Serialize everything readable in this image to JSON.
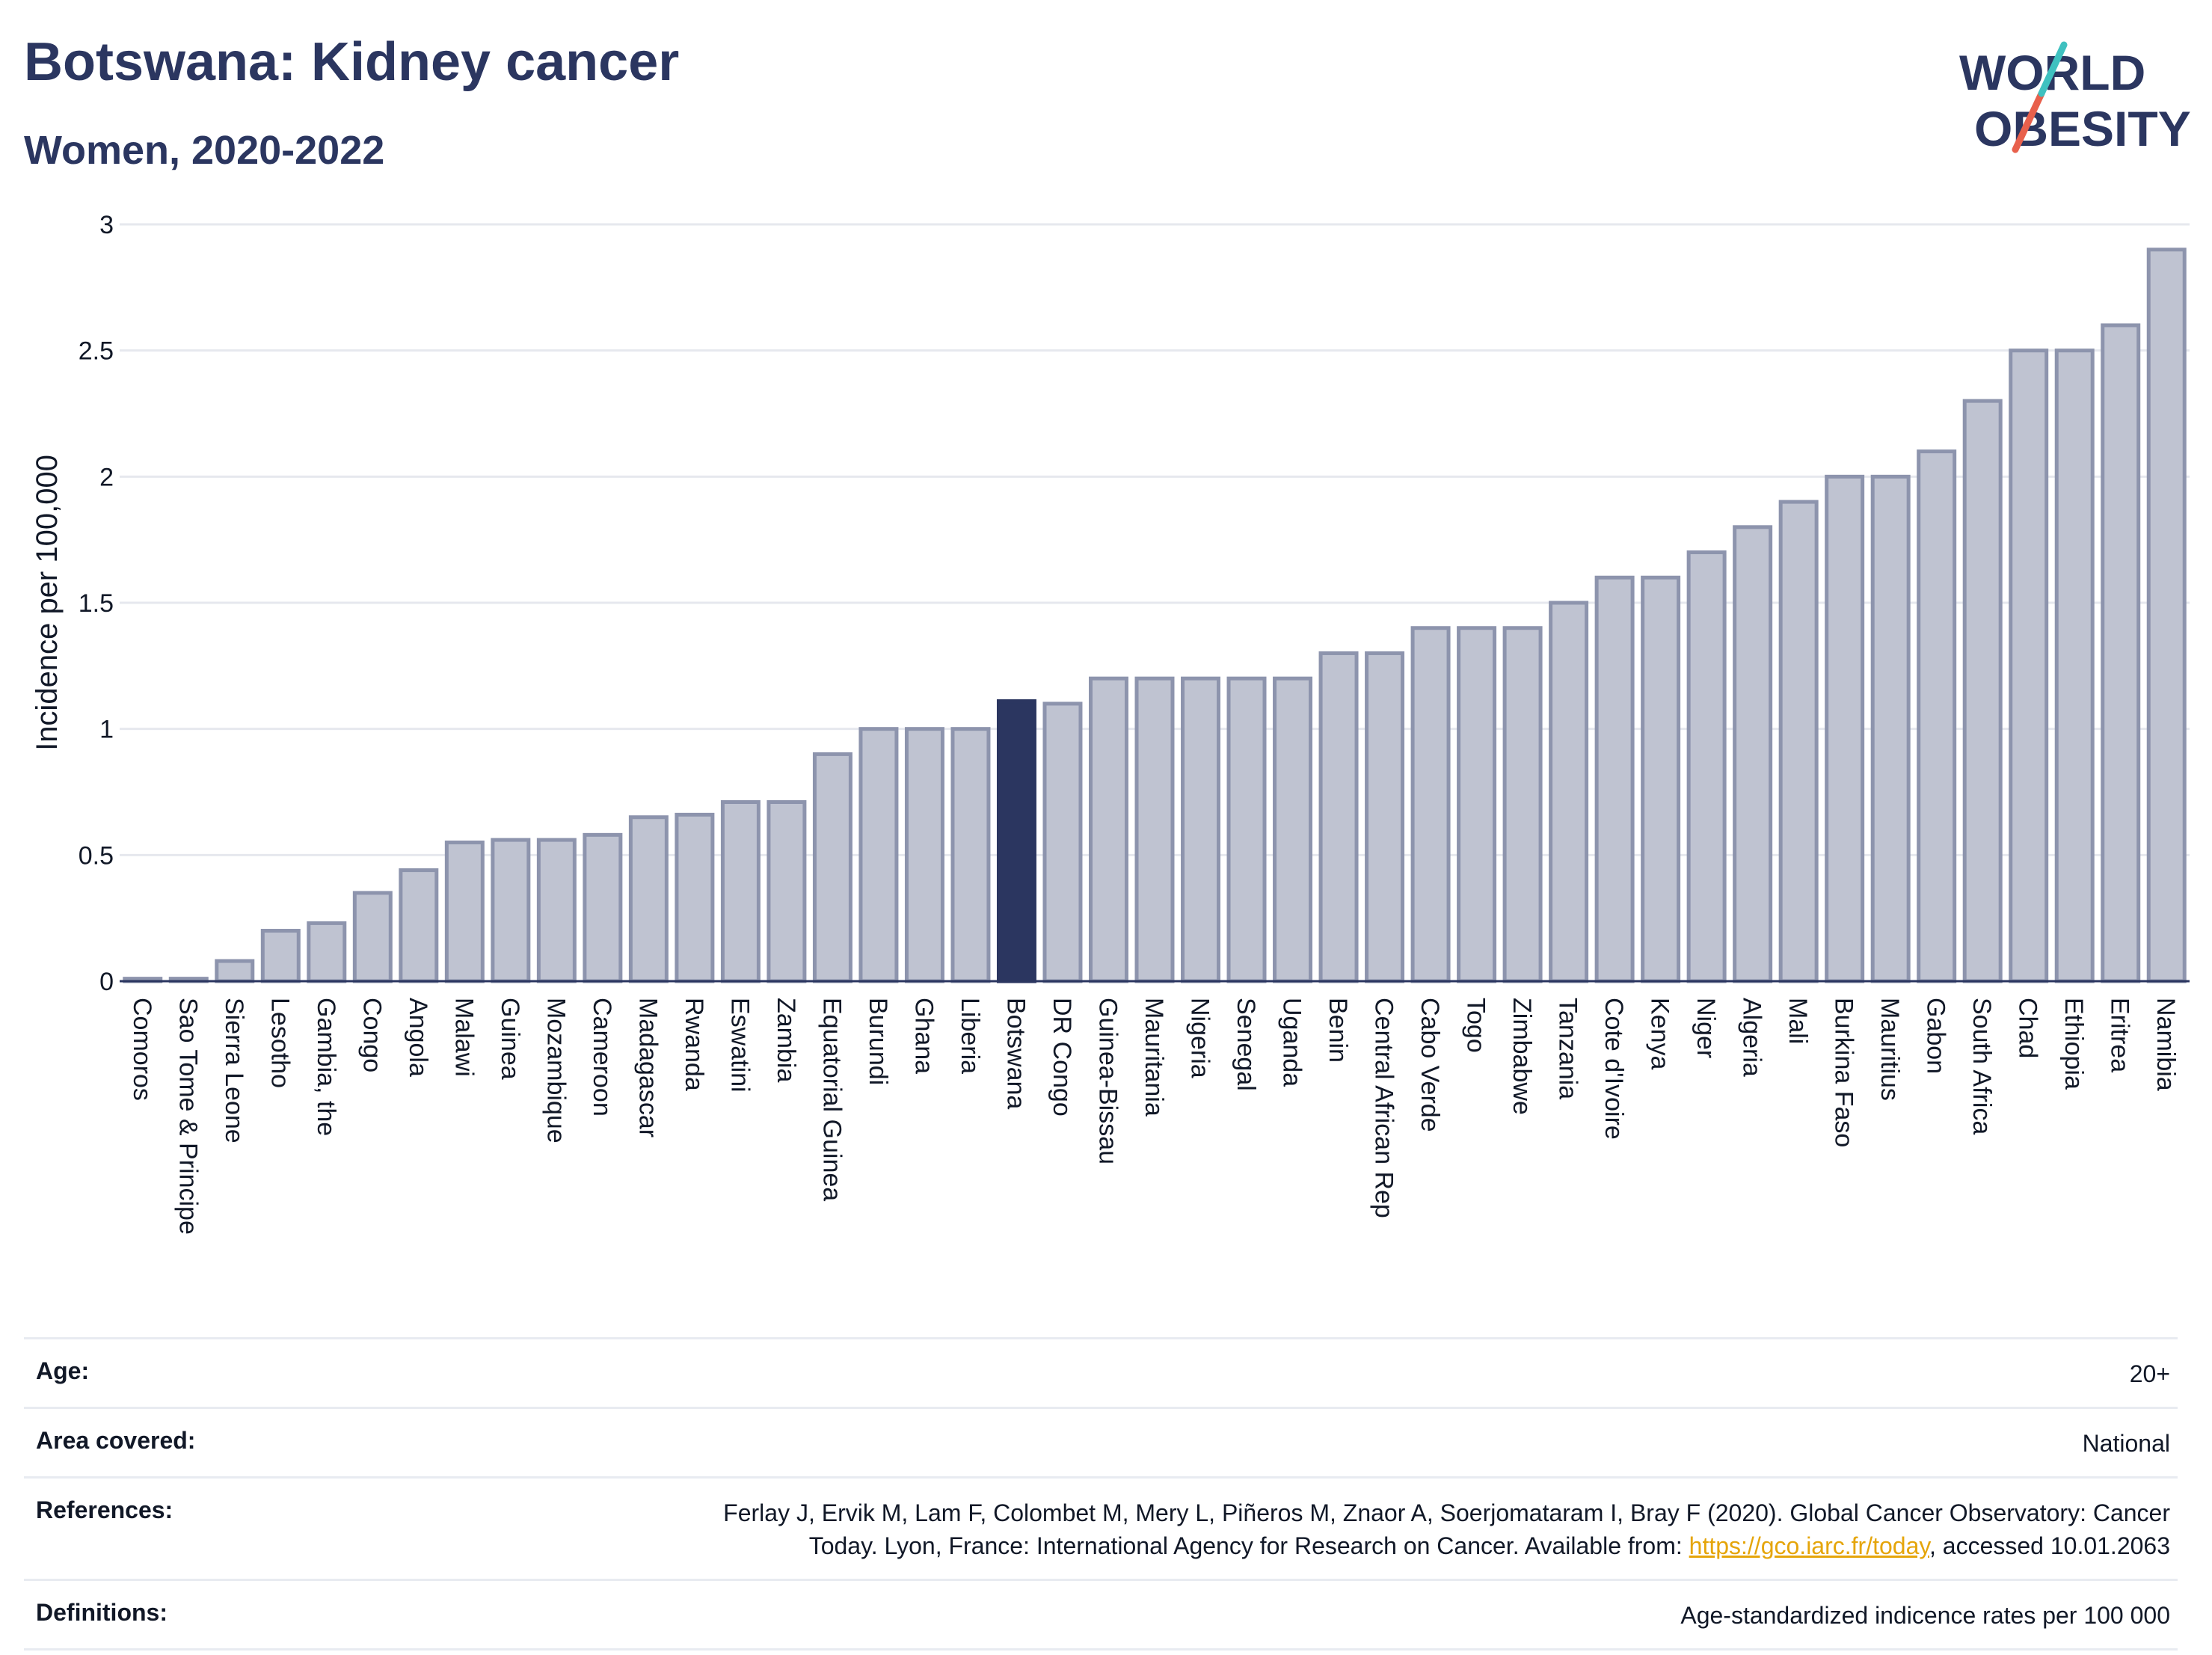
{
  "header": {
    "title": "Botswana: Kidney cancer",
    "subtitle": "Women, 2020-2022"
  },
  "logo": {
    "line1": "WORLD",
    "line2": "OBESITY"
  },
  "colors": {
    "highlight": "#2b3660",
    "bar": "#bfc3d1",
    "bar_stroke": "#8d94ad",
    "grid": "#e6e8ee",
    "link": "#e5a50a",
    "logo_teal": "#3fc1c0",
    "logo_red": "#e8604c"
  },
  "chart_data": {
    "type": "bar",
    "ylabel": "Incidence per 100,000",
    "ylim": [
      0,
      3
    ],
    "yticks": [
      "0",
      "0.5",
      "1",
      "1.5",
      "2",
      "2.5",
      "3"
    ],
    "grid": true,
    "highlight": "Botswana",
    "categories": [
      "Comoros",
      "Sao Tome & Principe",
      "Sierra Leone",
      "Lesotho",
      "Gambia, the",
      "Congo",
      "Angola",
      "Malawi",
      "Guinea",
      "Mozambique",
      "Cameroon",
      "Madagascar",
      "Rwanda",
      "Eswatini",
      "Zambia",
      "Equatorial Guinea",
      "Burundi",
      "Ghana",
      "Liberia",
      "Botswana",
      "DR Congo",
      "Guinea-Bissau",
      "Mauritania",
      "Nigeria",
      "Senegal",
      "Uganda",
      "Benin",
      "Central African Rep",
      "Cabo Verde",
      "Togo",
      "Zimbabwe",
      "Tanzania",
      "Cote d'Ivoire",
      "Kenya",
      "Niger",
      "Algeria",
      "Mali",
      "Burkina Faso",
      "Mauritius",
      "Gabon",
      "South Africa",
      "Chad",
      "Ethiopia",
      "Eritrea",
      "Namibia"
    ],
    "values": [
      0.01,
      0.01,
      0.08,
      0.2,
      0.23,
      0.35,
      0.44,
      0.55,
      0.56,
      0.56,
      0.58,
      0.65,
      0.66,
      0.71,
      0.71,
      0.9,
      1.0,
      1.0,
      1.0,
      1.11,
      1.1,
      1.2,
      1.2,
      1.2,
      1.2,
      1.2,
      1.3,
      1.3,
      1.4,
      1.4,
      1.4,
      1.5,
      1.6,
      1.6,
      1.7,
      1.8,
      1.9,
      2.0,
      2.0,
      2.1,
      2.3,
      2.5,
      2.5,
      2.6,
      2.9
    ]
  },
  "meta": {
    "age_label": "Age:",
    "age_value": "20+",
    "area_label": "Area covered:",
    "area_value": "National",
    "refs_label": "References:",
    "refs_line1": "Ferlay J, Ervik M, Lam F, Colombet M, Mery L, Piñeros M, Znaor A, Soerjomataram I, Bray F (2020). Global Cancer Observatory: Cancer",
    "refs_line2_pre": "Today. Lyon, France: International Agency for Research on Cancer. Available from: ",
    "refs_link": "https://gco.iarc.fr/today",
    "refs_line2_post": ", accessed 10.01.2063",
    "defs_label": "Definitions:",
    "defs_value": "Age-standardized indicence rates per 100 000"
  }
}
